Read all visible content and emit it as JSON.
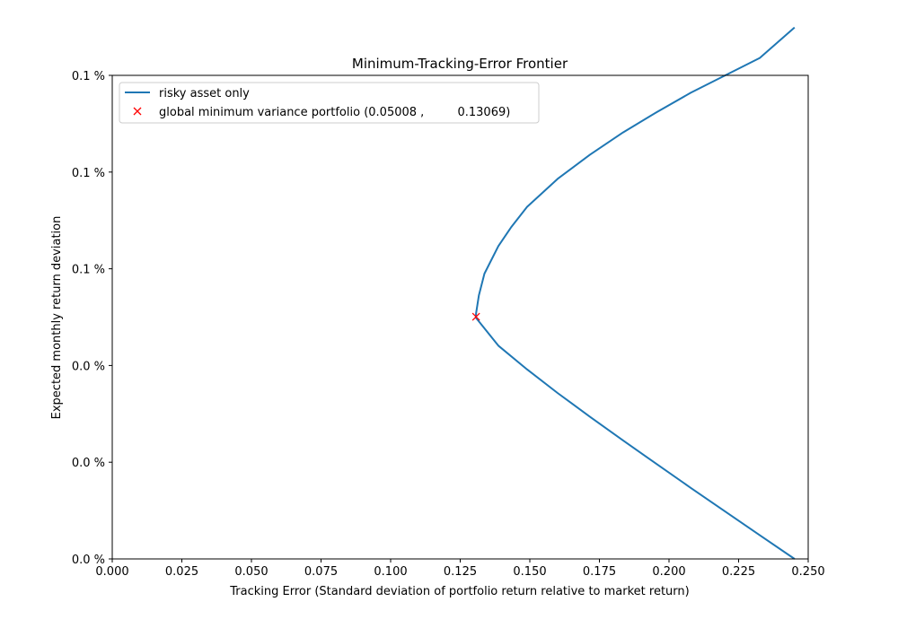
{
  "chart_data": {
    "type": "line",
    "title": "Minimum-Tracking-Error Frontier",
    "xlabel": "Tracking Error (Standard deviation of portfolio return relative to market return)",
    "ylabel": "Expected monthly return deviation",
    "xlim": [
      0.0,
      0.25
    ],
    "ylim": [
      0.0,
      0.1
    ],
    "x_ticks": [
      0.0,
      0.025,
      0.05,
      0.075,
      0.1,
      0.125,
      0.15,
      0.175,
      0.2,
      0.225,
      0.25
    ],
    "x_tick_labels": [
      "0.000",
      "0.025",
      "0.050",
      "0.075",
      "0.100",
      "0.125",
      "0.150",
      "0.175",
      "0.200",
      "0.225",
      "0.250"
    ],
    "y_ticks": [
      0.0,
      0.02,
      0.04,
      0.06,
      0.08,
      0.1
    ],
    "y_tick_labels": [
      "0.0 %",
      "0.0 %",
      "0.0 %",
      "0.1 %",
      "0.1 %",
      "0.1 %"
    ],
    "grid": false,
    "legend_position": "top-left",
    "series": [
      {
        "name": "risky asset only",
        "kind": "line",
        "color": "#1f77b4",
        "x": [
          0.2451,
          0.2326,
          0.2202,
          0.2078,
          0.1956,
          0.1835,
          0.1716,
          0.16,
          0.149,
          0.1387,
          0.1306,
          0.1307,
          0.1317,
          0.1337,
          0.1387,
          0.1433,
          0.149,
          0.16,
          0.1716,
          0.1835,
          0.1956,
          0.2078,
          0.2202,
          0.2326,
          0.2451
        ],
        "y": [
          0.0,
          0.0049,
          0.0098,
          0.0147,
          0.0196,
          0.0245,
          0.0294,
          0.0343,
          0.0392,
          0.0441,
          0.0499,
          0.0508,
          0.0545,
          0.059,
          0.0647,
          0.0686,
          0.0728,
          0.0786,
          0.0836,
          0.0882,
          0.0924,
          0.0964,
          0.1,
          0.1036,
          0.1099
        ]
      },
      {
        "name": "global minimum variance portfolio (0.05008 ,         0.13069)",
        "kind": "marker",
        "marker": "x",
        "color": "#ff0000",
        "x": [
          0.13069
        ],
        "y": [
          0.05008
        ]
      }
    ]
  }
}
